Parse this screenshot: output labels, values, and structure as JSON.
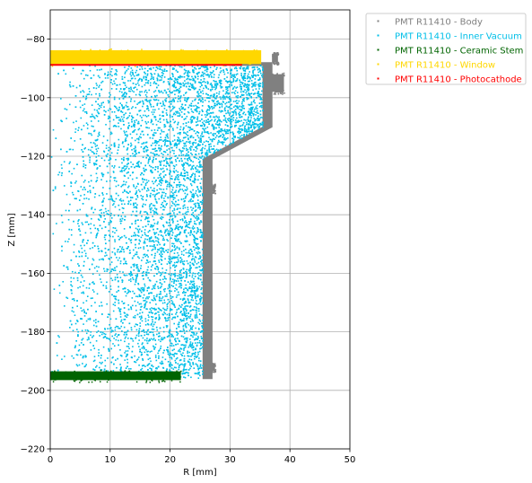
{
  "chart_data": {
    "type": "scatter",
    "xlabel": "R [mm]",
    "ylabel": "Z [mm]",
    "xlim": [
      0,
      50
    ],
    "ylim": [
      -220,
      -70
    ],
    "xticks": [
      0,
      10,
      20,
      30,
      40,
      50
    ],
    "yticks": [
      -220,
      -200,
      -180,
      -160,
      -140,
      -120,
      -100,
      -80
    ],
    "grid": true,
    "legend_position": "outside-top-right",
    "series": [
      {
        "name": "PMT R11410 - Body",
        "color": "#808080",
        "regions": [
          {
            "kind": "outline",
            "points": [
              [
                31,
                -88
              ],
              [
                37,
                -88
              ],
              [
                37,
                -110
              ],
              [
                27,
                -121
              ],
              [
                27,
                -196
              ],
              [
                25.5,
                -196
              ],
              [
                25.5,
                -121
              ],
              [
                35.5,
                -110
              ],
              [
                35.5,
                -89
              ],
              [
                31,
                -89
              ]
            ]
          },
          {
            "kind": "rect",
            "r": [
              37,
              39
            ],
            "z": [
              -98,
              -92
            ]
          },
          {
            "kind": "rect",
            "r": [
              37,
              38
            ],
            "z": [
              -88,
              -85
            ]
          },
          {
            "kind": "rect",
            "r": [
              26.5,
              27.5
            ],
            "z": [
              -132,
              -130
            ]
          },
          {
            "kind": "rect",
            "r": [
              26.5,
              27.5
            ],
            "z": [
              -193,
              -191
            ]
          }
        ]
      },
      {
        "name": "PMT R11410 - Inner Vacuum",
        "color": "#00bfe8",
        "regions": [
          {
            "kind": "polygon",
            "points": [
              [
                0,
                -89
              ],
              [
                35.5,
                -89
              ],
              [
                35.5,
                -110
              ],
              [
                25.5,
                -121
              ],
              [
                25.5,
                -196
              ],
              [
                0,
                -196
              ]
            ]
          }
        ]
      },
      {
        "name": "PMT R11410 - Ceramic Stem",
        "color": "#006400",
        "regions": [
          {
            "kind": "rect",
            "r": [
              0,
              21.8
            ],
            "z": [
              -196.5,
              -193.5
            ]
          }
        ]
      },
      {
        "name": "PMT R11410 - Window",
        "color": "#ffd700",
        "regions": [
          {
            "kind": "rect",
            "r": [
              0,
              35.2
            ],
            "z": [
              -88.5,
              -83.8
            ]
          }
        ]
      },
      {
        "name": "PMT R11410 - Photocathode",
        "color": "#ff0000",
        "regions": [
          {
            "kind": "line",
            "points": [
              [
                0,
                -88.8
              ],
              [
                32,
                -88.8
              ]
            ]
          }
        ]
      }
    ]
  }
}
